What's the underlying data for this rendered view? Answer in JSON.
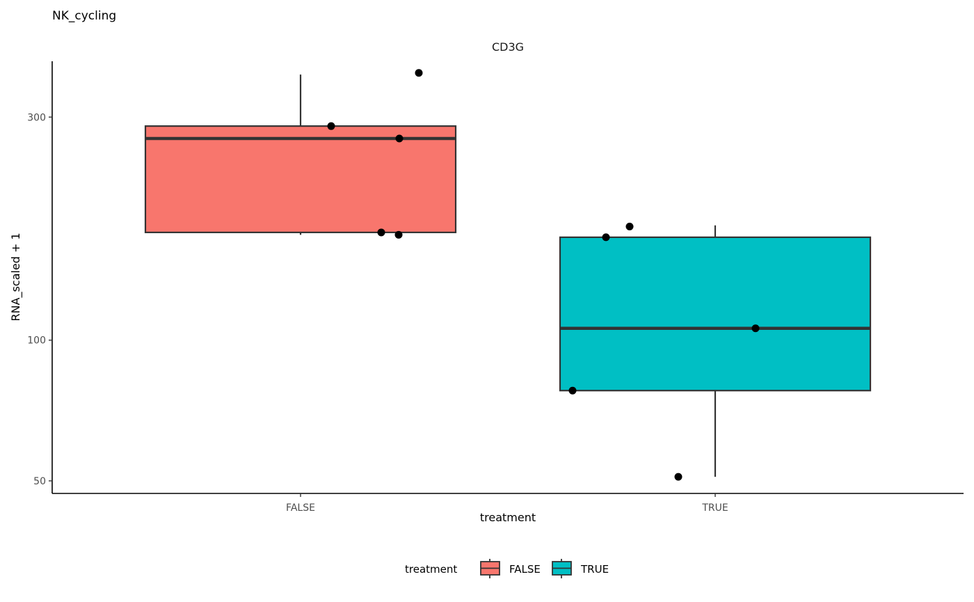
{
  "title": "NK_cycling",
  "chart_data": {
    "type": "box",
    "title": "NK_cycling",
    "subtitle": "CD3G",
    "xlabel": "treatment",
    "ylabel": "RNA_scaled + 1",
    "y_scale": "log10",
    "y_ticks": [
      50,
      100,
      300
    ],
    "y_tick_labels": [
      "50",
      "100",
      "300"
    ],
    "ylim": [
      47,
      395
    ],
    "categories": [
      "FALSE",
      "TRUE"
    ],
    "boxes": [
      {
        "category": "FALSE",
        "color": "#F8766D",
        "q1": 170,
        "median": 270,
        "q3": 287,
        "whisker_low": 168,
        "whisker_high": 370
      },
      {
        "category": "TRUE",
        "color": "#00BFC4",
        "q1": 78,
        "median": 106,
        "q3": 166,
        "whisker_low": 51,
        "whisker_high": 176
      }
    ],
    "points": [
      {
        "category": "FALSE",
        "y": 373
      },
      {
        "category": "FALSE",
        "y": 287
      },
      {
        "category": "FALSE",
        "y": 270
      },
      {
        "category": "FALSE",
        "y": 170
      },
      {
        "category": "FALSE",
        "y": 168
      },
      {
        "category": "TRUE",
        "y": 175
      },
      {
        "category": "TRUE",
        "y": 166
      },
      {
        "category": "TRUE",
        "y": 106
      },
      {
        "category": "TRUE",
        "y": 78
      },
      {
        "category": "TRUE",
        "y": 51
      }
    ],
    "grid": false,
    "legend": {
      "title": "treatment",
      "position": "bottom",
      "items": [
        {
          "label": "FALSE",
          "color": "#F8766D"
        },
        {
          "label": "TRUE",
          "color": "#00BFC4"
        }
      ]
    }
  }
}
